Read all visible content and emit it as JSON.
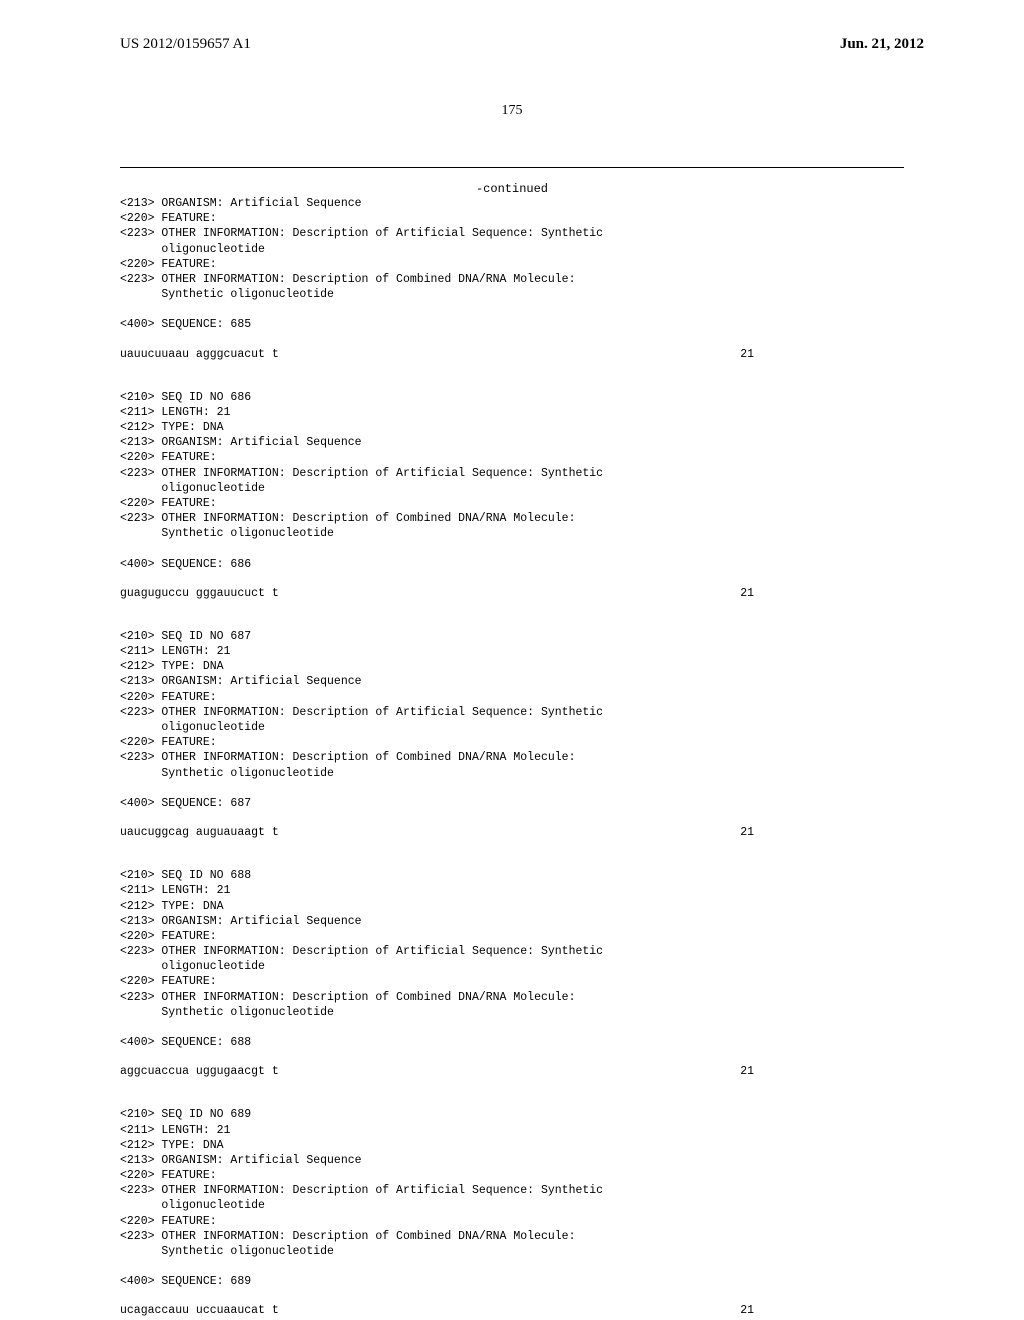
{
  "header": {
    "pub_number": "US 2012/0159657 A1",
    "pub_date": "Jun. 21, 2012"
  },
  "page_number": "175",
  "continued": "-continued",
  "blocks": [
    {
      "lines": [
        "<213> ORGANISM: Artificial Sequence",
        "<220> FEATURE:",
        "<223> OTHER INFORMATION: Description of Artificial Sequence: Synthetic",
        "      oligonucleotide",
        "<220> FEATURE:",
        "<223> OTHER INFORMATION: Description of Combined DNA/RNA Molecule:",
        "      Synthetic oligonucleotide",
        "",
        "<400> SEQUENCE: 685"
      ],
      "seq": "uauucuuaau agggcuacut t",
      "len": "21"
    },
    {
      "lines": [
        "<210> SEQ ID NO 686",
        "<211> LENGTH: 21",
        "<212> TYPE: DNA",
        "<213> ORGANISM: Artificial Sequence",
        "<220> FEATURE:",
        "<223> OTHER INFORMATION: Description of Artificial Sequence: Synthetic",
        "      oligonucleotide",
        "<220> FEATURE:",
        "<223> OTHER INFORMATION: Description of Combined DNA/RNA Molecule:",
        "      Synthetic oligonucleotide",
        "",
        "<400> SEQUENCE: 686"
      ],
      "seq": "guaguguccu gggauucuct t",
      "len": "21"
    },
    {
      "lines": [
        "<210> SEQ ID NO 687",
        "<211> LENGTH: 21",
        "<212> TYPE: DNA",
        "<213> ORGANISM: Artificial Sequence",
        "<220> FEATURE:",
        "<223> OTHER INFORMATION: Description of Artificial Sequence: Synthetic",
        "      oligonucleotide",
        "<220> FEATURE:",
        "<223> OTHER INFORMATION: Description of Combined DNA/RNA Molecule:",
        "      Synthetic oligonucleotide",
        "",
        "<400> SEQUENCE: 687"
      ],
      "seq": "uaucuggcag auguauaagt t",
      "len": "21"
    },
    {
      "lines": [
        "<210> SEQ ID NO 688",
        "<211> LENGTH: 21",
        "<212> TYPE: DNA",
        "<213> ORGANISM: Artificial Sequence",
        "<220> FEATURE:",
        "<223> OTHER INFORMATION: Description of Artificial Sequence: Synthetic",
        "      oligonucleotide",
        "<220> FEATURE:",
        "<223> OTHER INFORMATION: Description of Combined DNA/RNA Molecule:",
        "      Synthetic oligonucleotide",
        "",
        "<400> SEQUENCE: 688"
      ],
      "seq": "aggcuaccua uggugaacgt t",
      "len": "21"
    },
    {
      "lines": [
        "<210> SEQ ID NO 689",
        "<211> LENGTH: 21",
        "<212> TYPE: DNA",
        "<213> ORGANISM: Artificial Sequence",
        "<220> FEATURE:",
        "<223> OTHER INFORMATION: Description of Artificial Sequence: Synthetic",
        "      oligonucleotide",
        "<220> FEATURE:",
        "<223> OTHER INFORMATION: Description of Combined DNA/RNA Molecule:",
        "      Synthetic oligonucleotide",
        "",
        "<400> SEQUENCE: 689"
      ],
      "seq": "ucagaccauu uccuaaucat t",
      "len": "21"
    }
  ]
}
